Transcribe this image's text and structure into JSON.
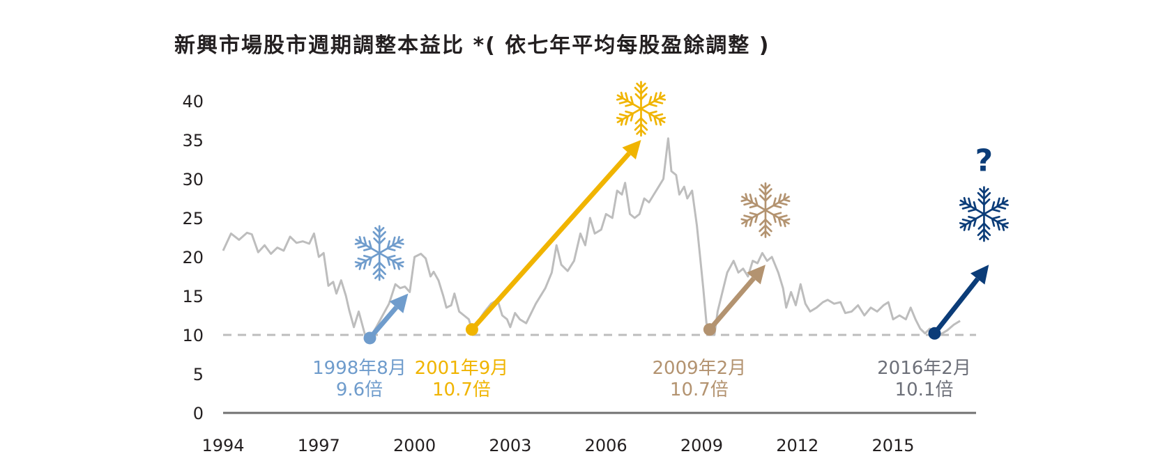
{
  "chart_data": {
    "type": "line",
    "title": "新興市場股市週期調整本益比 *( 依七年平均每股盈餘調整 )",
    "xlabel": "",
    "ylabel": "",
    "xlim": [
      1994,
      2017.6
    ],
    "ylim": [
      0,
      40
    ],
    "x_ticks": [
      "1994",
      "1997",
      "2000",
      "2003",
      "2006",
      "2009",
      "2012",
      "2015"
    ],
    "y_ticks": [
      "0",
      "5",
      "10",
      "15",
      "20",
      "25",
      "30",
      "35",
      "40"
    ],
    "reference_line": {
      "y": 10,
      "style": "dashed"
    },
    "grid": false,
    "colors": {
      "series": "#bdbdbd",
      "axis": "#707070",
      "reference": "#bdbdbd",
      "blue_light": "#6f9ccc",
      "gold": "#f0b400",
      "tan": "#b39370",
      "navy": "#0b3c78",
      "gray_text": "#6d7079"
    },
    "series": [
      {
        "values": [
          [
            1994.0,
            20.8
          ],
          [
            1994.25,
            23.0
          ],
          [
            1994.5,
            22.2
          ],
          [
            1994.75,
            23.1
          ],
          [
            1994.9,
            22.9
          ],
          [
            1995.1,
            20.6
          ],
          [
            1995.3,
            21.5
          ],
          [
            1995.5,
            20.4
          ],
          [
            1995.7,
            21.2
          ],
          [
            1995.9,
            20.8
          ],
          [
            1996.1,
            22.6
          ],
          [
            1996.3,
            21.8
          ],
          [
            1996.5,
            22.0
          ],
          [
            1996.7,
            21.7
          ],
          [
            1996.85,
            23.0
          ],
          [
            1997.0,
            20.0
          ],
          [
            1997.15,
            20.5
          ],
          [
            1997.3,
            16.3
          ],
          [
            1997.45,
            16.8
          ],
          [
            1997.55,
            15.3
          ],
          [
            1997.7,
            17.0
          ],
          [
            1997.85,
            15.0
          ],
          [
            1997.95,
            13.2
          ],
          [
            1998.1,
            11.0
          ],
          [
            1998.25,
            13.0
          ],
          [
            1998.45,
            10.0
          ],
          [
            1998.6,
            9.6
          ],
          [
            1998.8,
            11.0
          ],
          [
            1999.0,
            12.5
          ],
          [
            1999.2,
            14.0
          ],
          [
            1999.4,
            16.5
          ],
          [
            1999.55,
            16.0
          ],
          [
            1999.7,
            16.2
          ],
          [
            1999.85,
            15.5
          ],
          [
            2000.0,
            20.0
          ],
          [
            2000.2,
            20.4
          ],
          [
            2000.35,
            19.8
          ],
          [
            2000.5,
            17.5
          ],
          [
            2000.6,
            18.1
          ],
          [
            2000.75,
            17.0
          ],
          [
            2000.9,
            15.0
          ],
          [
            2001.0,
            13.5
          ],
          [
            2001.15,
            13.8
          ],
          [
            2001.25,
            15.3
          ],
          [
            2001.4,
            13.0
          ],
          [
            2001.55,
            12.5
          ],
          [
            2001.7,
            12.0
          ],
          [
            2001.8,
            10.7
          ],
          [
            2002.0,
            11.8
          ],
          [
            2002.2,
            13.0
          ],
          [
            2002.4,
            14.0
          ],
          [
            2002.6,
            14.5
          ],
          [
            2002.75,
            12.5
          ],
          [
            2002.9,
            12.0
          ],
          [
            2003.0,
            11.0
          ],
          [
            2003.15,
            12.8
          ],
          [
            2003.3,
            12.0
          ],
          [
            2003.5,
            11.5
          ],
          [
            2003.8,
            14.0
          ],
          [
            2004.1,
            16.0
          ],
          [
            2004.3,
            18.0
          ],
          [
            2004.45,
            21.5
          ],
          [
            2004.6,
            19.0
          ],
          [
            2004.8,
            18.2
          ],
          [
            2005.0,
            19.5
          ],
          [
            2005.2,
            23.0
          ],
          [
            2005.35,
            21.5
          ],
          [
            2005.5,
            25.0
          ],
          [
            2005.65,
            23.0
          ],
          [
            2005.85,
            23.5
          ],
          [
            2006.0,
            25.5
          ],
          [
            2006.2,
            25.0
          ],
          [
            2006.35,
            28.5
          ],
          [
            2006.5,
            28.0
          ],
          [
            2006.6,
            29.5
          ],
          [
            2006.75,
            25.5
          ],
          [
            2006.9,
            25.0
          ],
          [
            2007.05,
            25.5
          ],
          [
            2007.2,
            27.5
          ],
          [
            2007.35,
            27.0
          ],
          [
            2007.5,
            28.0
          ],
          [
            2007.65,
            29.0
          ],
          [
            2007.8,
            30.0
          ],
          [
            2007.95,
            35.2
          ],
          [
            2008.05,
            31.0
          ],
          [
            2008.2,
            30.5
          ],
          [
            2008.3,
            28.0
          ],
          [
            2008.45,
            29.0
          ],
          [
            2008.55,
            27.5
          ],
          [
            2008.7,
            28.5
          ],
          [
            2008.85,
            24.0
          ],
          [
            2008.95,
            20.0
          ],
          [
            2009.05,
            16.0
          ],
          [
            2009.15,
            11.5
          ],
          [
            2009.25,
            10.7
          ],
          [
            2009.4,
            10.0
          ],
          [
            2009.5,
            13.0
          ],
          [
            2009.65,
            15.5
          ],
          [
            2009.8,
            18.0
          ],
          [
            2010.0,
            19.5
          ],
          [
            2010.15,
            18.0
          ],
          [
            2010.3,
            18.5
          ],
          [
            2010.45,
            17.5
          ],
          [
            2010.6,
            19.5
          ],
          [
            2010.75,
            19.2
          ],
          [
            2010.9,
            20.5
          ],
          [
            2011.05,
            19.5
          ],
          [
            2011.2,
            20.0
          ],
          [
            2011.4,
            18.0
          ],
          [
            2011.55,
            16.0
          ],
          [
            2011.65,
            13.5
          ],
          [
            2011.8,
            15.5
          ],
          [
            2011.95,
            13.8
          ],
          [
            2012.1,
            16.5
          ],
          [
            2012.25,
            14.0
          ],
          [
            2012.4,
            13.0
          ],
          [
            2012.6,
            13.5
          ],
          [
            2012.8,
            14.2
          ],
          [
            2012.95,
            14.5
          ],
          [
            2013.15,
            14.0
          ],
          [
            2013.35,
            14.2
          ],
          [
            2013.5,
            12.8
          ],
          [
            2013.7,
            13.0
          ],
          [
            2013.9,
            13.8
          ],
          [
            2014.1,
            12.5
          ],
          [
            2014.3,
            13.5
          ],
          [
            2014.5,
            13.0
          ],
          [
            2014.7,
            13.8
          ],
          [
            2014.85,
            14.2
          ],
          [
            2015.0,
            12.0
          ],
          [
            2015.2,
            12.5
          ],
          [
            2015.4,
            12.0
          ],
          [
            2015.55,
            13.5
          ],
          [
            2015.7,
            12.0
          ],
          [
            2015.85,
            10.8
          ],
          [
            2016.0,
            10.2
          ],
          [
            2016.15,
            10.8
          ],
          [
            2016.35,
            10.2
          ],
          [
            2016.5,
            10.1
          ],
          [
            2016.7,
            10.6
          ],
          [
            2016.9,
            11.3
          ],
          [
            2017.1,
            11.8
          ]
        ]
      }
    ],
    "annotations": [
      {
        "label": "1998年8月",
        "value_label": "9.6倍",
        "color": "blue_light",
        "start": [
          1998.6,
          9.6
        ],
        "end": [
          1999.8,
          15.3
        ],
        "icon": "snowflake-icon",
        "icon_at": [
          1998.9,
          20.5
        ]
      },
      {
        "label": "2001年9月",
        "value_label": "10.7倍",
        "color": "gold",
        "start": [
          2001.8,
          10.7
        ],
        "end": [
          2007.1,
          35.0
        ],
        "icon": "snowflake-icon",
        "icon_at": [
          2007.1,
          39.0
        ]
      },
      {
        "label": "2009年2月",
        "value_label": "10.7倍",
        "color": "tan",
        "start": [
          2009.25,
          10.7
        ],
        "end": [
          2011.0,
          19.0
        ],
        "icon": "snowflake-icon",
        "icon_at": [
          2011.0,
          26.0
        ]
      },
      {
        "label": "2016年2月",
        "value_label": "10.1倍",
        "color": "navy",
        "start": [
          2016.3,
          10.2
        ],
        "end": [
          2018.0,
          19.0
        ],
        "icon": "snowflake-icon",
        "icon_at": [
          2017.85,
          25.5
        ],
        "extra_label": "?"
      }
    ]
  }
}
